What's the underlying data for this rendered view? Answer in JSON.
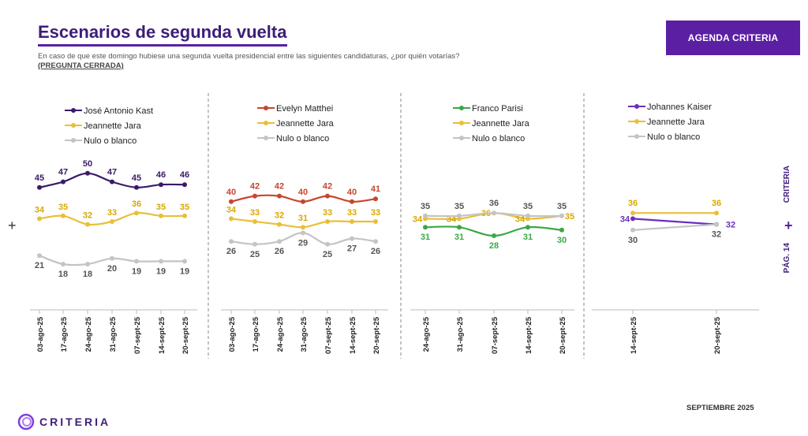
{
  "header": {
    "title": "Escenarios de segunda vuelta",
    "question": "En caso de que este domingo hubiese una segunda vuelta presidencial entre las siguientes candidaturas, ¿por quién votarías?",
    "question_type": "(PREGUNTA CERRADA)",
    "agenda_label": "AGENDA CRITERIA"
  },
  "side": {
    "brand": "CRITERIA",
    "page": "PÁG. 14",
    "plus": "+"
  },
  "footer": {
    "brand": "CRITERIA",
    "date": "SEPTIEMBRE 2025"
  },
  "left_plus": "+",
  "colors": {
    "kast": "#3b1a66",
    "matthei": "#c8452e",
    "parisi": "#3aa845",
    "kaiser": "#6a2fbf",
    "jara": "#e9bf3a",
    "nulo": "#c4c4c4",
    "brand": "#5b1fa4"
  },
  "chart_data": [
    {
      "type": "line",
      "categories": [
        "03-ago-25",
        "17-ago-25",
        "24-ago-25",
        "31-ago-25",
        "07-sept-25",
        "14-sept-25",
        "20-sept-25"
      ],
      "series": [
        {
          "name": "José Antonio Kast",
          "color_key": "kast",
          "values": [
            45,
            47,
            50,
            47,
            45,
            46,
            46
          ]
        },
        {
          "name": "Jeannette Jara",
          "color_key": "jara",
          "values": [
            34,
            35,
            32,
            33,
            36,
            35,
            35
          ]
        },
        {
          "name": "Nulo o blanco",
          "color_key": "nulo",
          "values": [
            21,
            18,
            18,
            20,
            19,
            19,
            19
          ]
        }
      ]
    },
    {
      "type": "line",
      "categories": [
        "03-ago-25",
        "17-ago-25",
        "24-ago-25",
        "31-ago-25",
        "07-sept-25",
        "14-sept-25",
        "20-sept-25"
      ],
      "series": [
        {
          "name": "Evelyn Matthei",
          "color_key": "matthei",
          "values": [
            40,
            42,
            42,
            40,
            42,
            40,
            41
          ]
        },
        {
          "name": "Jeannette Jara",
          "color_key": "jara",
          "values": [
            34,
            33,
            32,
            31,
            33,
            33,
            33
          ]
        },
        {
          "name": "Nulo o blanco",
          "color_key": "nulo",
          "values": [
            26,
            25,
            26,
            29,
            25,
            27,
            26
          ]
        }
      ]
    },
    {
      "type": "line",
      "categories": [
        "24-ago-25",
        "31-ago-25",
        "07-sept-25",
        "14-sept-25",
        "20-sept-25"
      ],
      "series": [
        {
          "name": "Franco Parisi",
          "color_key": "parisi",
          "values": [
            31,
            31,
            28,
            31,
            30
          ]
        },
        {
          "name": "Jeannette Jara",
          "color_key": "jara",
          "values": [
            34,
            34,
            36,
            34,
            35
          ]
        },
        {
          "name": "Nulo o blanco",
          "color_key": "nulo",
          "values": [
            35,
            35,
            36,
            35,
            35
          ]
        }
      ]
    },
    {
      "type": "line",
      "categories": [
        "14-sept-25",
        "20-sept-25"
      ],
      "series": [
        {
          "name": "Johannes Kaiser",
          "color_key": "kaiser",
          "values": [
            34,
            32
          ]
        },
        {
          "name": "Jeannette Jara",
          "color_key": "jara",
          "values": [
            36,
            36
          ]
        },
        {
          "name": "Nulo o blanco",
          "color_key": "nulo",
          "values": [
            30,
            32
          ]
        }
      ]
    }
  ]
}
